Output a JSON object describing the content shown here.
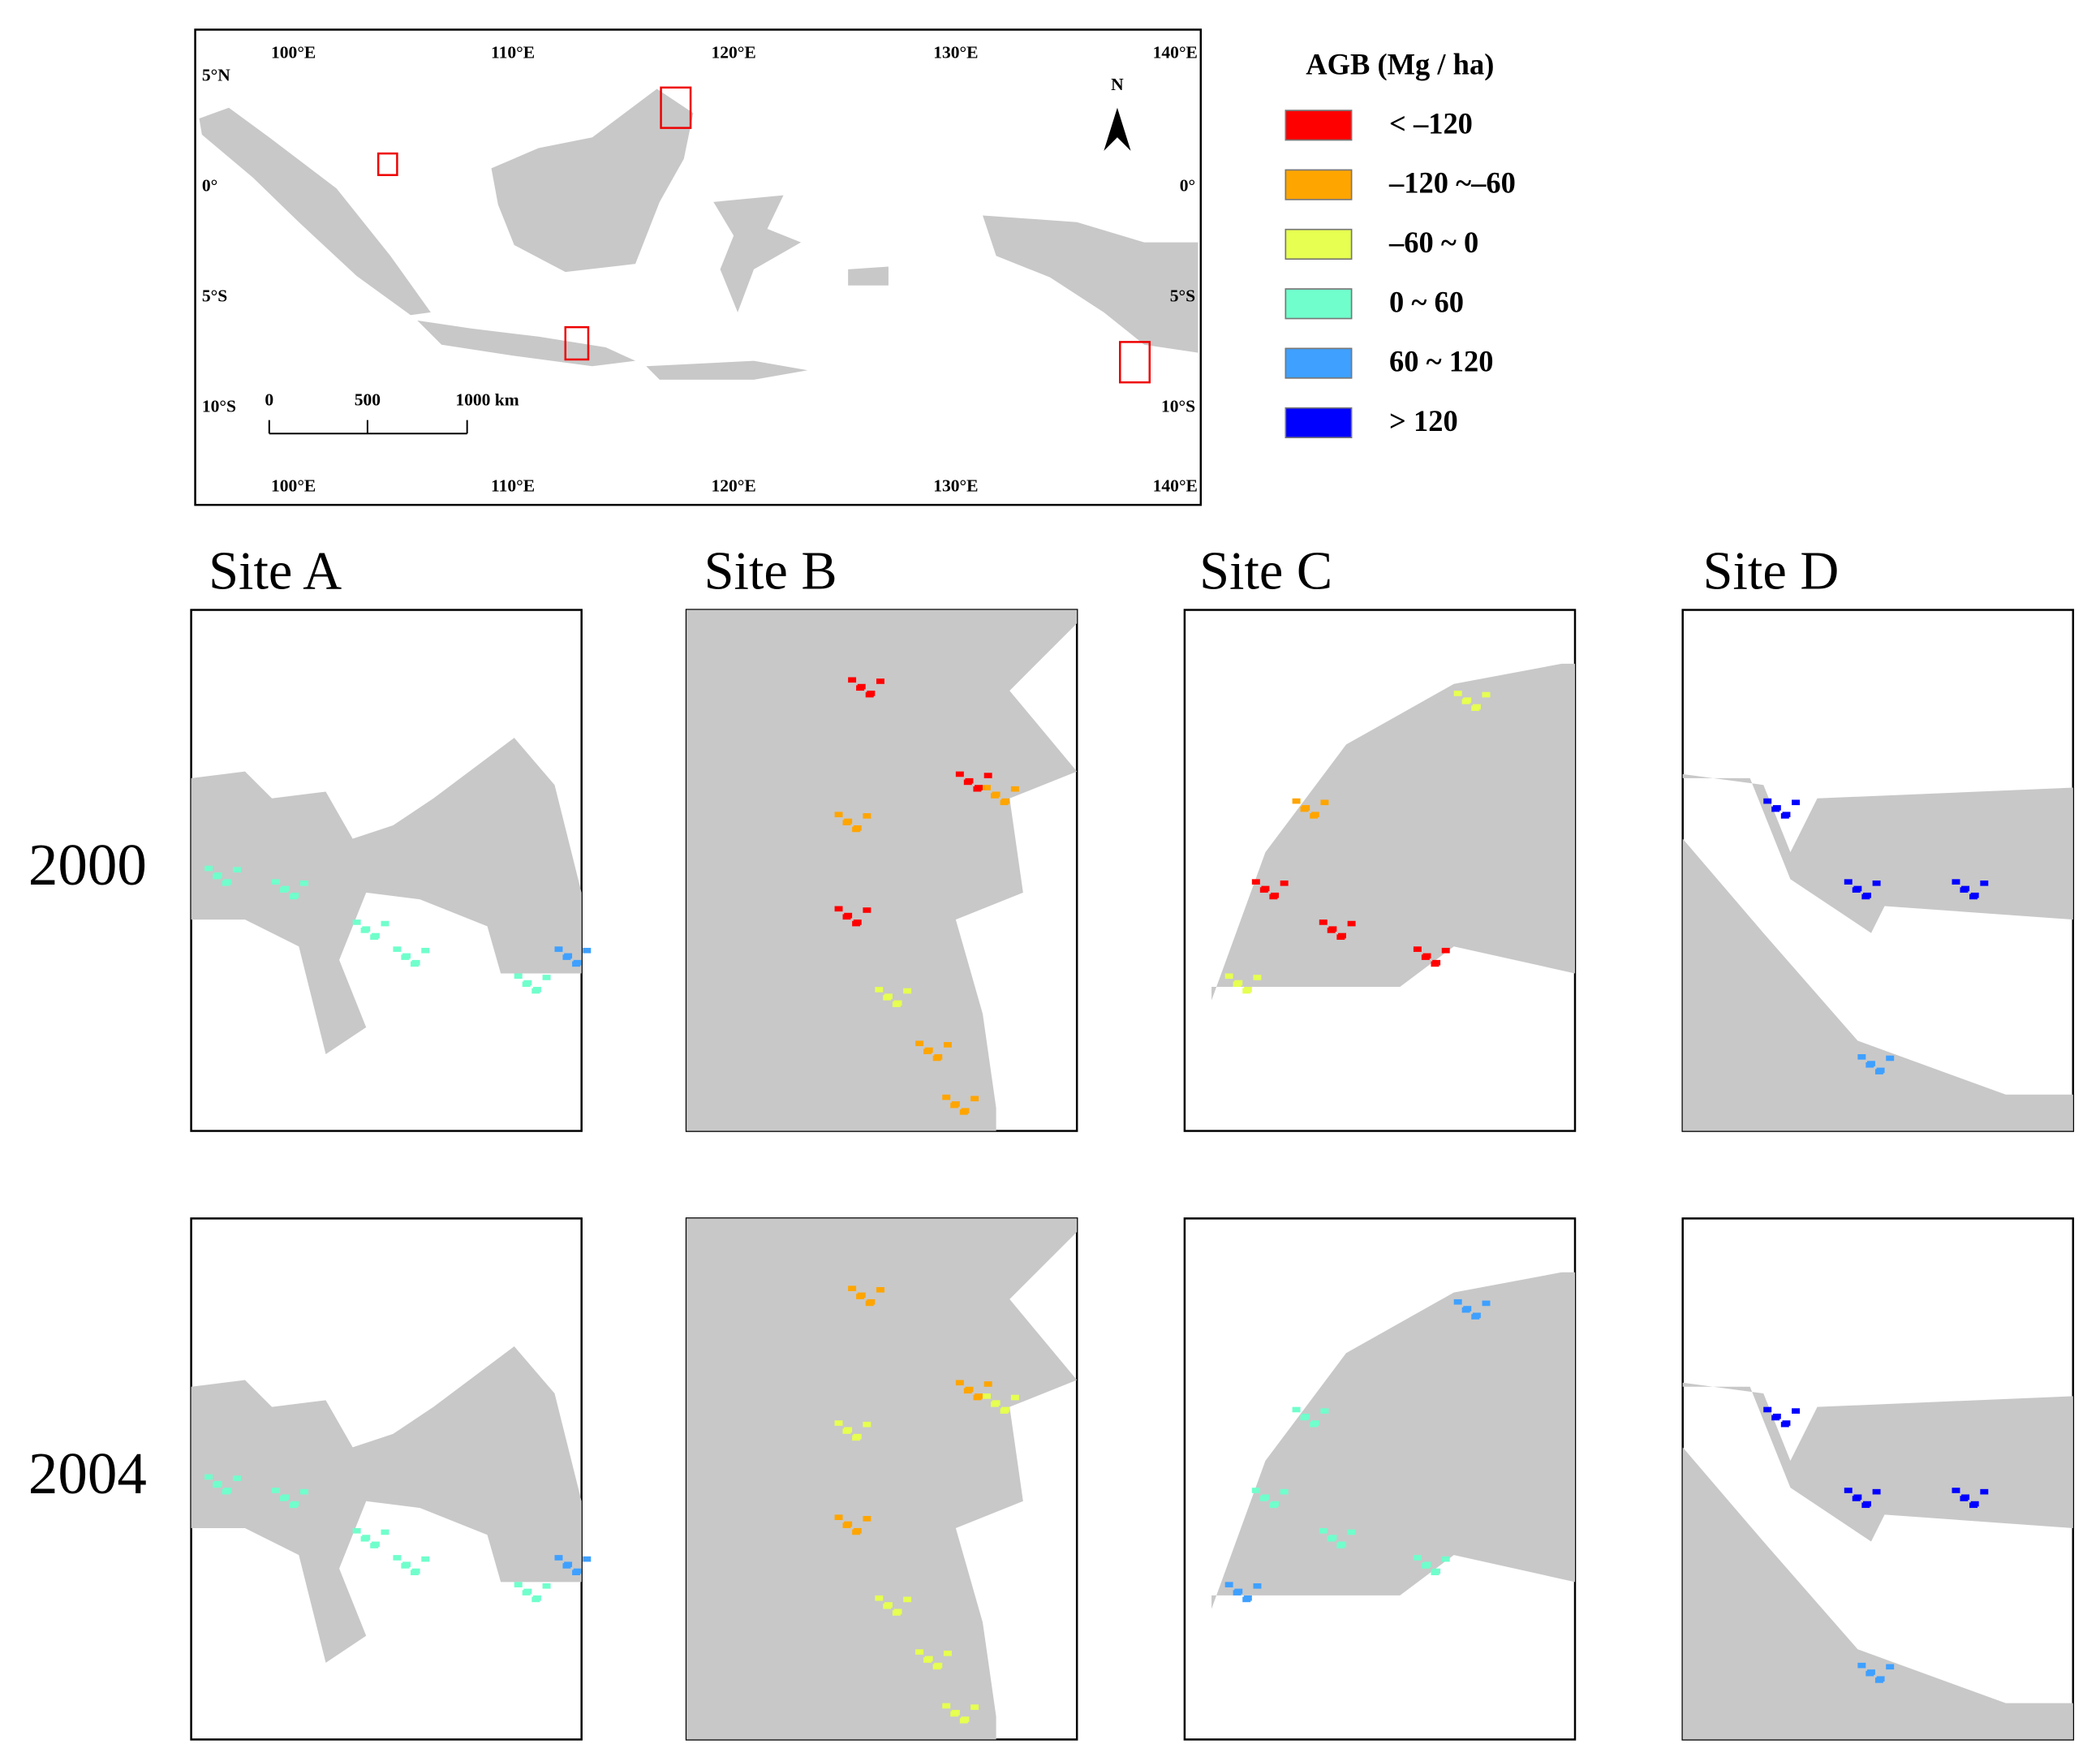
{
  "map": {
    "top_labels": [
      "100°E",
      "110°E",
      "120°E",
      "130°E",
      "140°E"
    ],
    "bottom_labels": [
      "100°E",
      "110°E",
      "120°E",
      "130°E",
      "140°E"
    ],
    "left_labels": [
      "5°N",
      "0°",
      "5°S",
      "10°S"
    ],
    "right_labels": [
      "0°",
      "5°S",
      "10°S"
    ],
    "north": "N",
    "scale_labels": [
      "0",
      "500",
      "1000 km"
    ]
  },
  "legend": {
    "title": "AGB (Mg / ha)",
    "items": [
      {
        "label": "< –120",
        "color": "#ff0000"
      },
      {
        "label": "–120 ~–60",
        "color": "#ffa500"
      },
      {
        "label": "–60  ~ 0",
        "color": "#e6ff50"
      },
      {
        "label": "0 ~ 60",
        "color": "#70ffcc"
      },
      {
        "label": "60 ~ 120",
        "color": "#3fa0ff"
      },
      {
        "label": "> 120",
        "color": "#0000ff"
      }
    ]
  },
  "sites": [
    "Site A",
    "Site B",
    "Site C",
    "Site D"
  ],
  "years": [
    "2000",
    "2004"
  ]
}
